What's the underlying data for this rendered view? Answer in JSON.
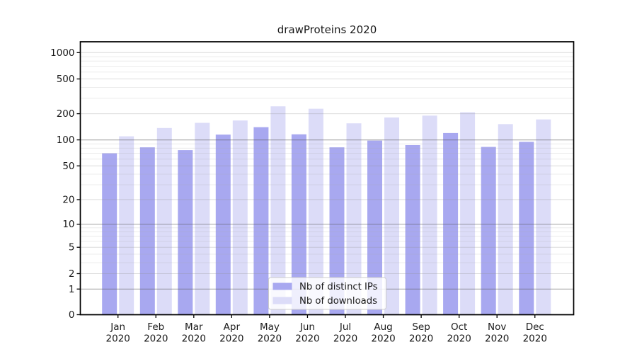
{
  "chart_data": {
    "type": "bar",
    "title": "drawProteins 2020",
    "categories": [
      "Jan",
      "Feb",
      "Mar",
      "Apr",
      "May",
      "Jun",
      "Jul",
      "Aug",
      "Sep",
      "Oct",
      "Nov",
      "Dec"
    ],
    "x_year_suffix": "2020",
    "series": [
      {
        "name": "Nb of distinct IPs",
        "color": "#a8a8f0",
        "values": [
          70,
          82,
          76,
          115,
          140,
          116,
          82,
          98,
          87,
          120,
          83,
          95
        ]
      },
      {
        "name": "Nb of downloads",
        "color": "#dcdcf8",
        "values": [
          110,
          137,
          157,
          167,
          243,
          228,
          155,
          181,
          190,
          208,
          152,
          172
        ]
      }
    ],
    "yscale": "log1p",
    "ylim": [
      0,
      1150
    ],
    "yticks": [
      0,
      1,
      2,
      5,
      10,
      20,
      50,
      100,
      200,
      500,
      1000
    ],
    "emphasized_gridlines": [
      1,
      10,
      100
    ],
    "minor_gridlines": [
      3,
      4,
      6,
      7,
      8,
      9,
      30,
      40,
      60,
      70,
      80,
      90,
      300,
      400,
      600,
      700,
      800,
      900
    ],
    "grid": true,
    "legend_position": "lower center",
    "text_color": "#1a1a1a",
    "axis_color": "#000000"
  }
}
